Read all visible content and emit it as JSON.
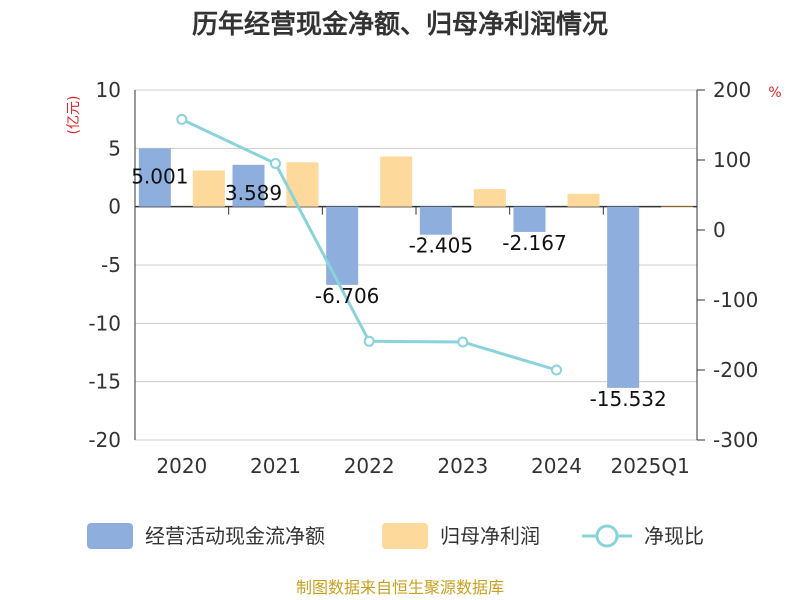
{
  "chart_data": {
    "type": "bar",
    "title": "历年经营现金净额、归母净利润情况",
    "categories": [
      "2020",
      "2021",
      "2022",
      "2023",
      "2024",
      "2025Q1"
    ],
    "y_left": {
      "unit": "(亿元)",
      "range": [
        -20,
        10
      ],
      "ticks": [
        "10",
        "5",
        "0",
        "-5",
        "-10",
        "-15",
        "-20"
      ]
    },
    "y_right": {
      "unit": "%",
      "range": [
        -300,
        200
      ],
      "ticks": [
        "200",
        "100",
        "0",
        "-100",
        "-200",
        "-300"
      ]
    },
    "series": [
      {
        "name": "经营活动现金流净额",
        "type": "bar",
        "axis": "left",
        "color": "#8eaedd",
        "values": [
          5.001,
          3.589,
          -6.706,
          -2.405,
          -2.167,
          -15.532
        ],
        "labels": [
          "5.001",
          "3.589",
          "-6.706",
          "-2.405",
          "-2.167",
          "-15.532"
        ]
      },
      {
        "name": "归母净利润",
        "type": "bar",
        "axis": "left",
        "color": "#fdd99b",
        "values": [
          3.1,
          3.8,
          4.3,
          1.5,
          1.1,
          -0.1
        ]
      },
      {
        "name": "净现比",
        "type": "line",
        "axis": "right",
        "color": "#8ad3da",
        "values": [
          158,
          95,
          -159,
          -160,
          -200,
          null
        ]
      }
    ],
    "grid": true,
    "legend_position": "bottom"
  },
  "source": "制图数据来自恒生聚源数据库"
}
